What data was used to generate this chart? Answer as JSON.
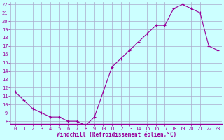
{
  "x": [
    0,
    1,
    2,
    3,
    4,
    5,
    6,
    7,
    8,
    9,
    10,
    11,
    12,
    13,
    14,
    15,
    16,
    17,
    18,
    19,
    20,
    21,
    22,
    23
  ],
  "y": [
    11.5,
    10.5,
    9.5,
    9.0,
    8.5,
    8.5,
    8.0,
    8.0,
    7.5,
    8.5,
    11.5,
    14.5,
    15.5,
    16.5,
    17.5,
    18.5,
    19.5,
    19.5,
    21.5,
    22.0,
    21.5,
    21.0,
    17.0,
    16.5
  ],
  "line_color": "#990099",
  "marker": "+",
  "marker_size": 3,
  "line_width": 0.8,
  "bg_color": "#ccffff",
  "grid_color": "#aaaacc",
  "xlabel": "Windchill (Refroidissement éolien,°C)",
  "xlabel_color": "#990099",
  "tick_color": "#990099",
  "ylim": [
    8,
    22
  ],
  "xlim": [
    -0.5,
    23.5
  ],
  "yticks": [
    8,
    9,
    10,
    11,
    12,
    13,
    14,
    15,
    16,
    17,
    18,
    19,
    20,
    21,
    22
  ],
  "xticks": [
    0,
    1,
    2,
    3,
    4,
    5,
    6,
    7,
    8,
    9,
    10,
    11,
    12,
    13,
    14,
    15,
    16,
    17,
    18,
    19,
    20,
    21,
    22,
    23
  ],
  "tick_fontsize": 5,
  "xlabel_fontsize": 5.5,
  "xlabel_fontweight": "bold"
}
